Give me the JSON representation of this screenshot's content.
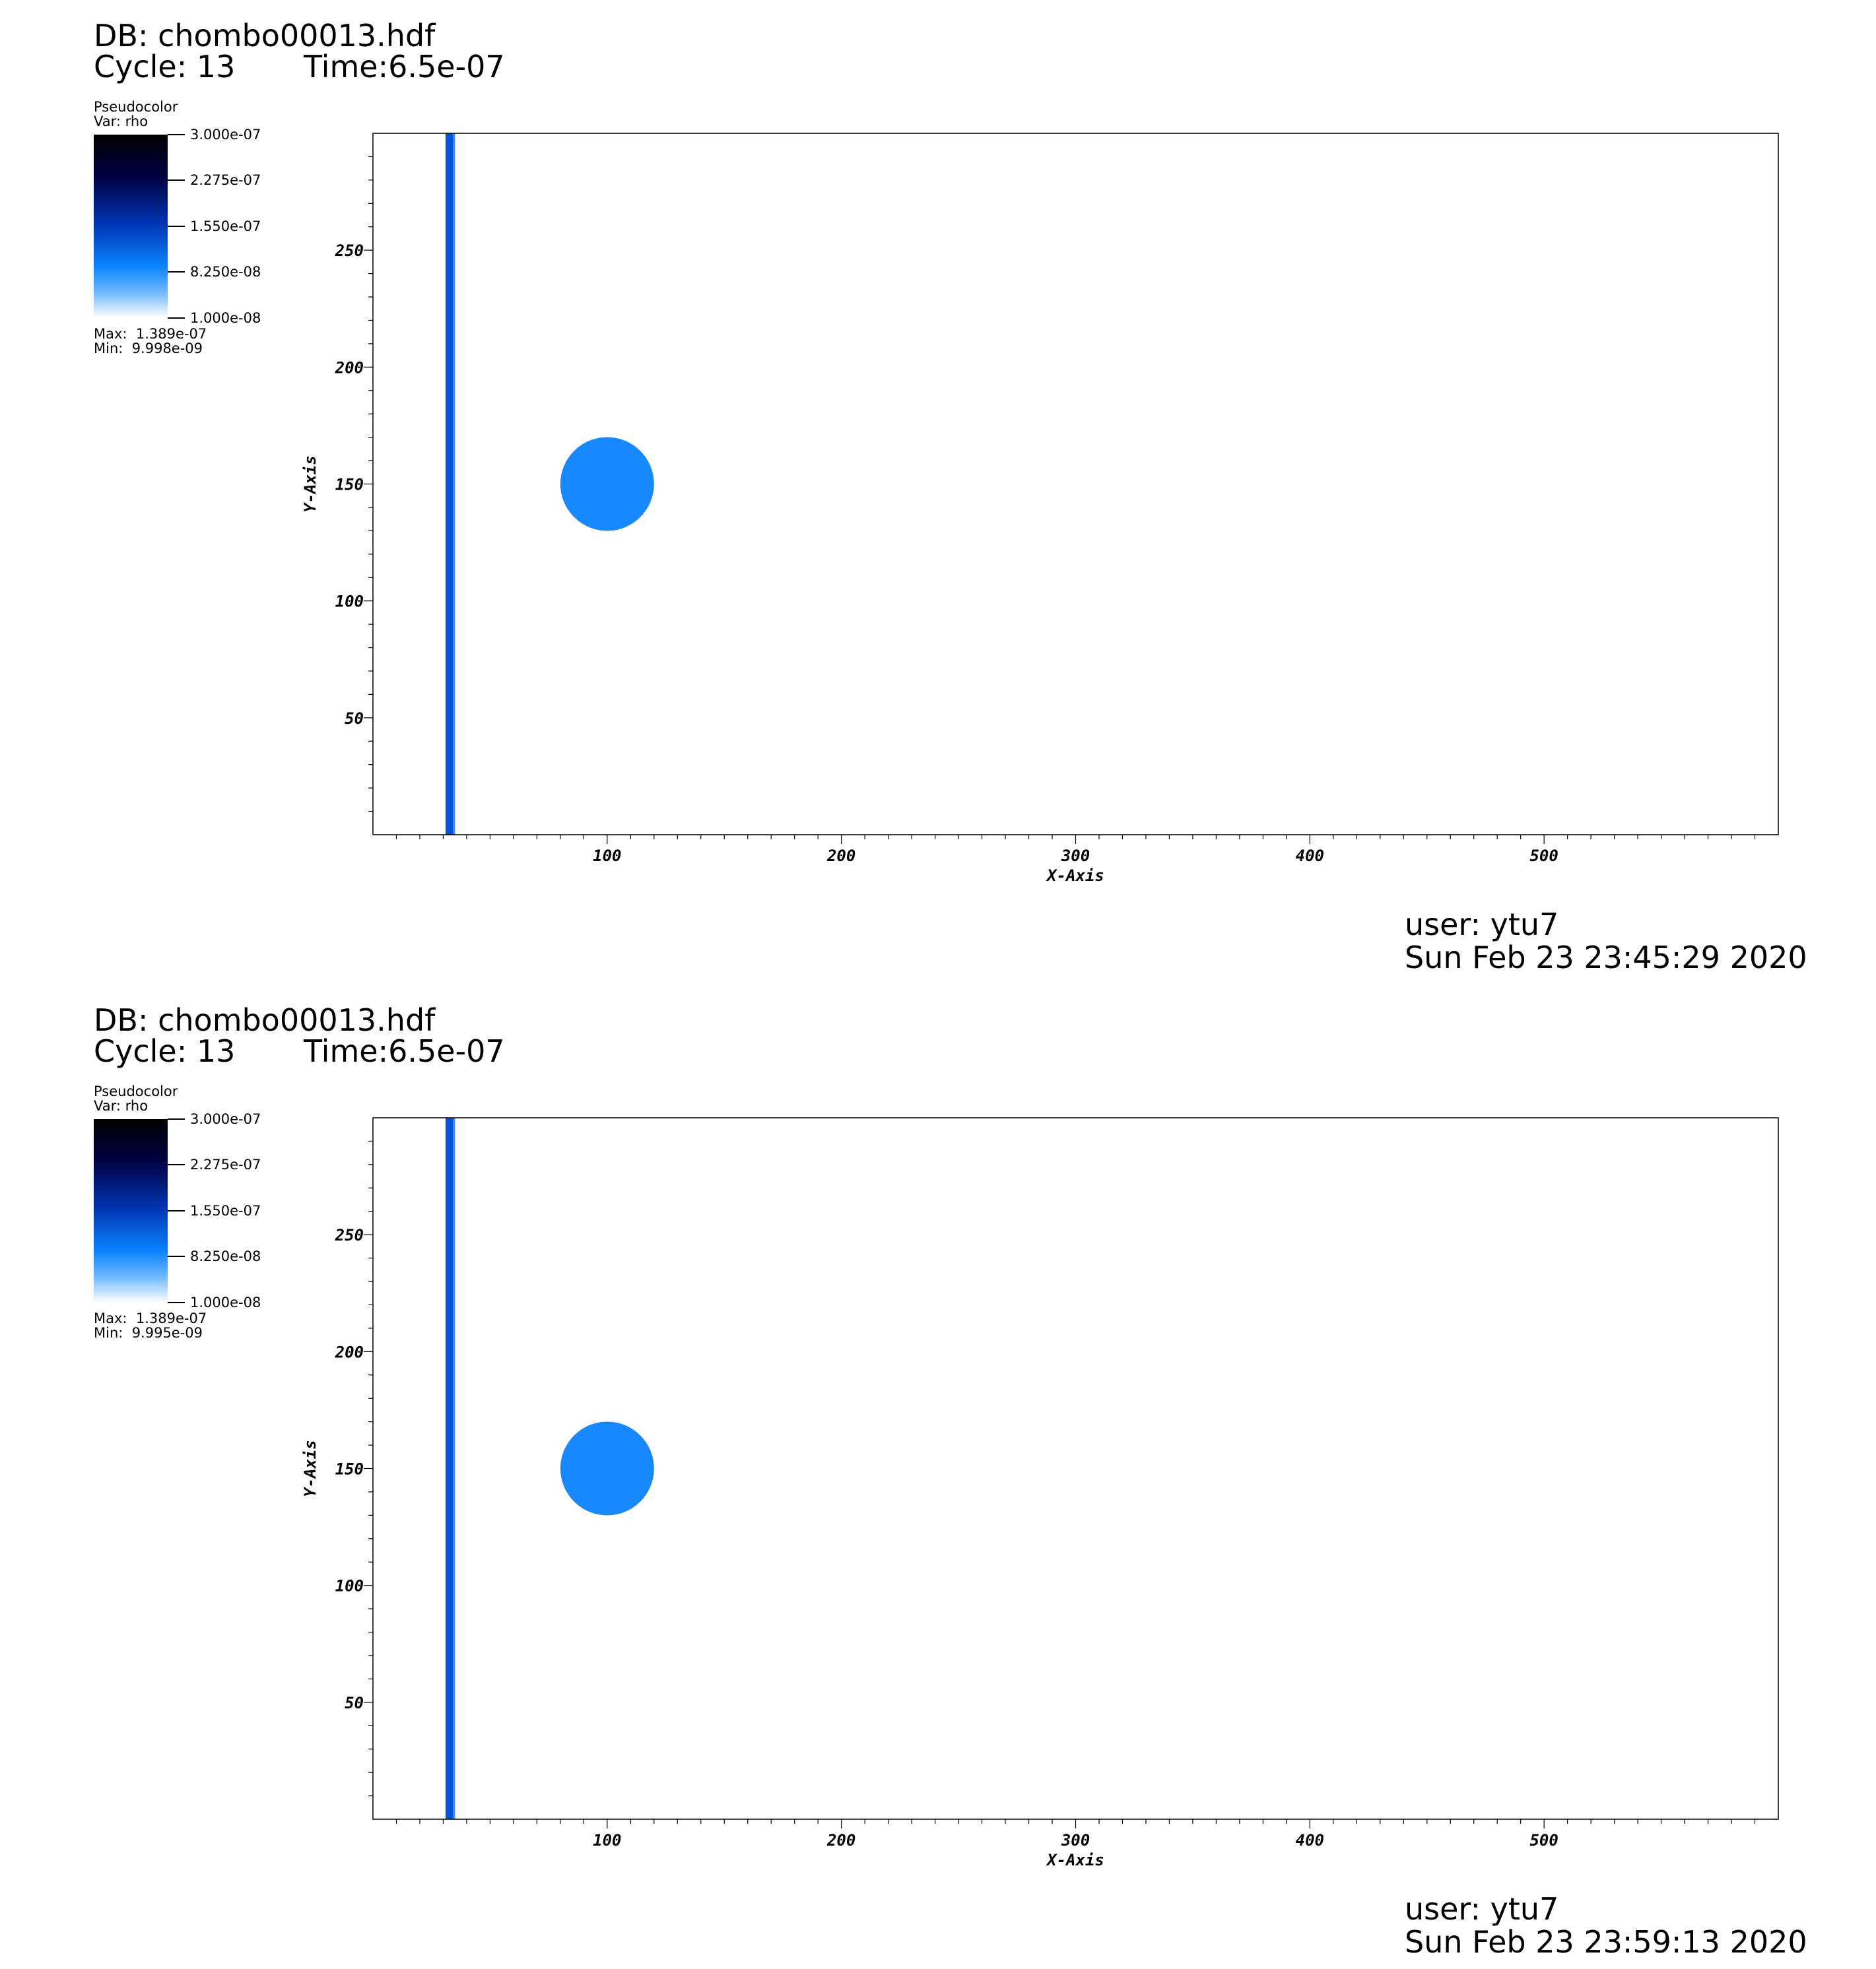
{
  "panels": [
    {
      "db_label": "DB: chombo00013.hdf",
      "cycle_label": "Cycle: 13",
      "time_label": "Time:6.5e-07",
      "legend": {
        "plot_type": "Pseudocolor",
        "var_label": "Var: rho",
        "ticks": [
          "3.000e-07",
          "2.275e-07",
          "1.550e-07",
          "8.250e-08",
          "1.000e-08"
        ],
        "max_label": "Max:  1.389e-07",
        "min_label": "Min:  9.998e-09"
      },
      "user_label": "user: ytu7",
      "date_label": "Sun Feb 23 23:45:29 2020"
    },
    {
      "db_label": "DB: chombo00013.hdf",
      "cycle_label": "Cycle: 13",
      "time_label": "Time:6.5e-07",
      "legend": {
        "plot_type": "Pseudocolor",
        "var_label": "Var: rho",
        "ticks": [
          "3.000e-07",
          "2.275e-07",
          "1.550e-07",
          "8.250e-08",
          "1.000e-08"
        ],
        "max_label": "Max:  1.389e-07",
        "min_label": "Min:  9.995e-09"
      },
      "user_label": "user: ytu7",
      "date_label": "Sun Feb 23 23:59:13 2020"
    }
  ],
  "chart_data": [
    {
      "type": "heatmap",
      "variable": "rho",
      "colormap": {
        "min": 1e-08,
        "max": 3e-07,
        "colors": [
          "#ffffff",
          "#0a84ff",
          "#0033b0",
          "#000040",
          "#000000"
        ]
      },
      "data_min": 9.998e-09,
      "data_max": 1.389e-07,
      "xlabel": "X-Axis",
      "ylabel": "Y-Axis",
      "xlim": [
        0,
        600
      ],
      "ylim": [
        0,
        300
      ],
      "xticks": [
        100,
        200,
        300,
        400,
        500
      ],
      "yticks": [
        50,
        100,
        150,
        200,
        250
      ],
      "background_value": 1e-08,
      "features": [
        {
          "kind": "vertical_band",
          "x_range": [
            31,
            35
          ],
          "color": "#0055dd"
        },
        {
          "kind": "circle",
          "center": [
            100,
            150
          ],
          "radius": 20,
          "color": "#1888ff"
        }
      ]
    },
    {
      "type": "heatmap",
      "variable": "rho",
      "colormap": {
        "min": 1e-08,
        "max": 3e-07,
        "colors": [
          "#ffffff",
          "#0a84ff",
          "#0033b0",
          "#000040",
          "#000000"
        ]
      },
      "data_min": 9.995e-09,
      "data_max": 1.389e-07,
      "xlabel": "X-Axis",
      "ylabel": "Y-Axis",
      "xlim": [
        0,
        600
      ],
      "ylim": [
        0,
        300
      ],
      "xticks": [
        100,
        200,
        300,
        400,
        500
      ],
      "yticks": [
        50,
        100,
        150,
        200,
        250
      ],
      "background_value": 1e-08,
      "features": [
        {
          "kind": "vertical_band",
          "x_range": [
            31,
            35
          ],
          "color": "#0055dd"
        },
        {
          "kind": "circle",
          "center": [
            100,
            150
          ],
          "radius": 20,
          "color": "#1888ff"
        }
      ]
    }
  ]
}
